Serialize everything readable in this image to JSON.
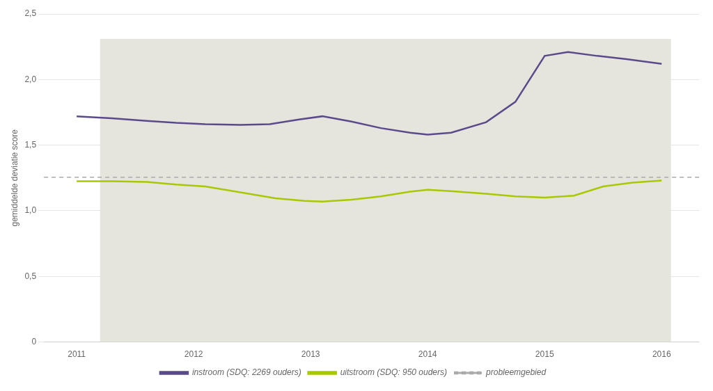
{
  "chart_data": {
    "type": "line",
    "ylabel": "gemiddelde deviatie score",
    "series": [
      {
        "name": "instroom (SDQ: 2269 ouders)",
        "color": "#5b4a8a",
        "x": [
          2011.0,
          2011.3,
          2011.6,
          2011.85,
          2012.1,
          2012.4,
          2012.65,
          2012.9,
          2013.1,
          2013.35,
          2013.6,
          2013.85,
          2014.0,
          2014.2,
          2014.5,
          2014.75,
          2015.0,
          2015.2,
          2015.45,
          2015.7,
          2016.0
        ],
        "values": [
          1.72,
          1.705,
          1.685,
          1.67,
          1.66,
          1.655,
          1.66,
          1.695,
          1.72,
          1.68,
          1.63,
          1.595,
          1.58,
          1.595,
          1.675,
          1.83,
          2.18,
          2.21,
          2.18,
          2.155,
          2.12
        ]
      },
      {
        "name": "uitstroom (SDQ: 950 ouders)",
        "color": "#a8c800",
        "x": [
          2011.0,
          2011.3,
          2011.6,
          2011.85,
          2012.1,
          2012.4,
          2012.7,
          2012.95,
          2013.1,
          2013.35,
          2013.6,
          2013.85,
          2014.0,
          2014.2,
          2014.5,
          2014.75,
          2015.0,
          2015.25,
          2015.5,
          2015.75,
          2016.0
        ],
        "values": [
          1.225,
          1.225,
          1.22,
          1.2,
          1.185,
          1.14,
          1.095,
          1.075,
          1.07,
          1.085,
          1.11,
          1.145,
          1.16,
          1.15,
          1.13,
          1.11,
          1.1,
          1.115,
          1.185,
          1.215,
          1.23
        ]
      },
      {
        "name": "probleemgebied",
        "type": "hline",
        "color": "#aaaaaa",
        "line_style": "dashed",
        "values": [
          1.255
        ]
      }
    ],
    "shaded_region": {
      "x": [
        2011.2,
        2016.08
      ],
      "y": [
        0.0,
        2.31
      ],
      "color": "#e5e5de"
    },
    "xlim": [
      2010.72,
      2016.32
    ],
    "xticks": [
      2011,
      2012,
      2013,
      2014,
      2015,
      2016
    ],
    "ylim": [
      0,
      2.5
    ],
    "yticks": [
      0,
      {
        "value": 0.5,
        "label": "0,5"
      },
      {
        "value": 1.0,
        "label": "1,0"
      },
      {
        "value": 1.5,
        "label": "1,5"
      },
      {
        "value": 2.0,
        "label": "2,0"
      },
      {
        "value": 2.5,
        "label": "2,5"
      }
    ],
    "grid": "y",
    "legend": "bottom"
  }
}
